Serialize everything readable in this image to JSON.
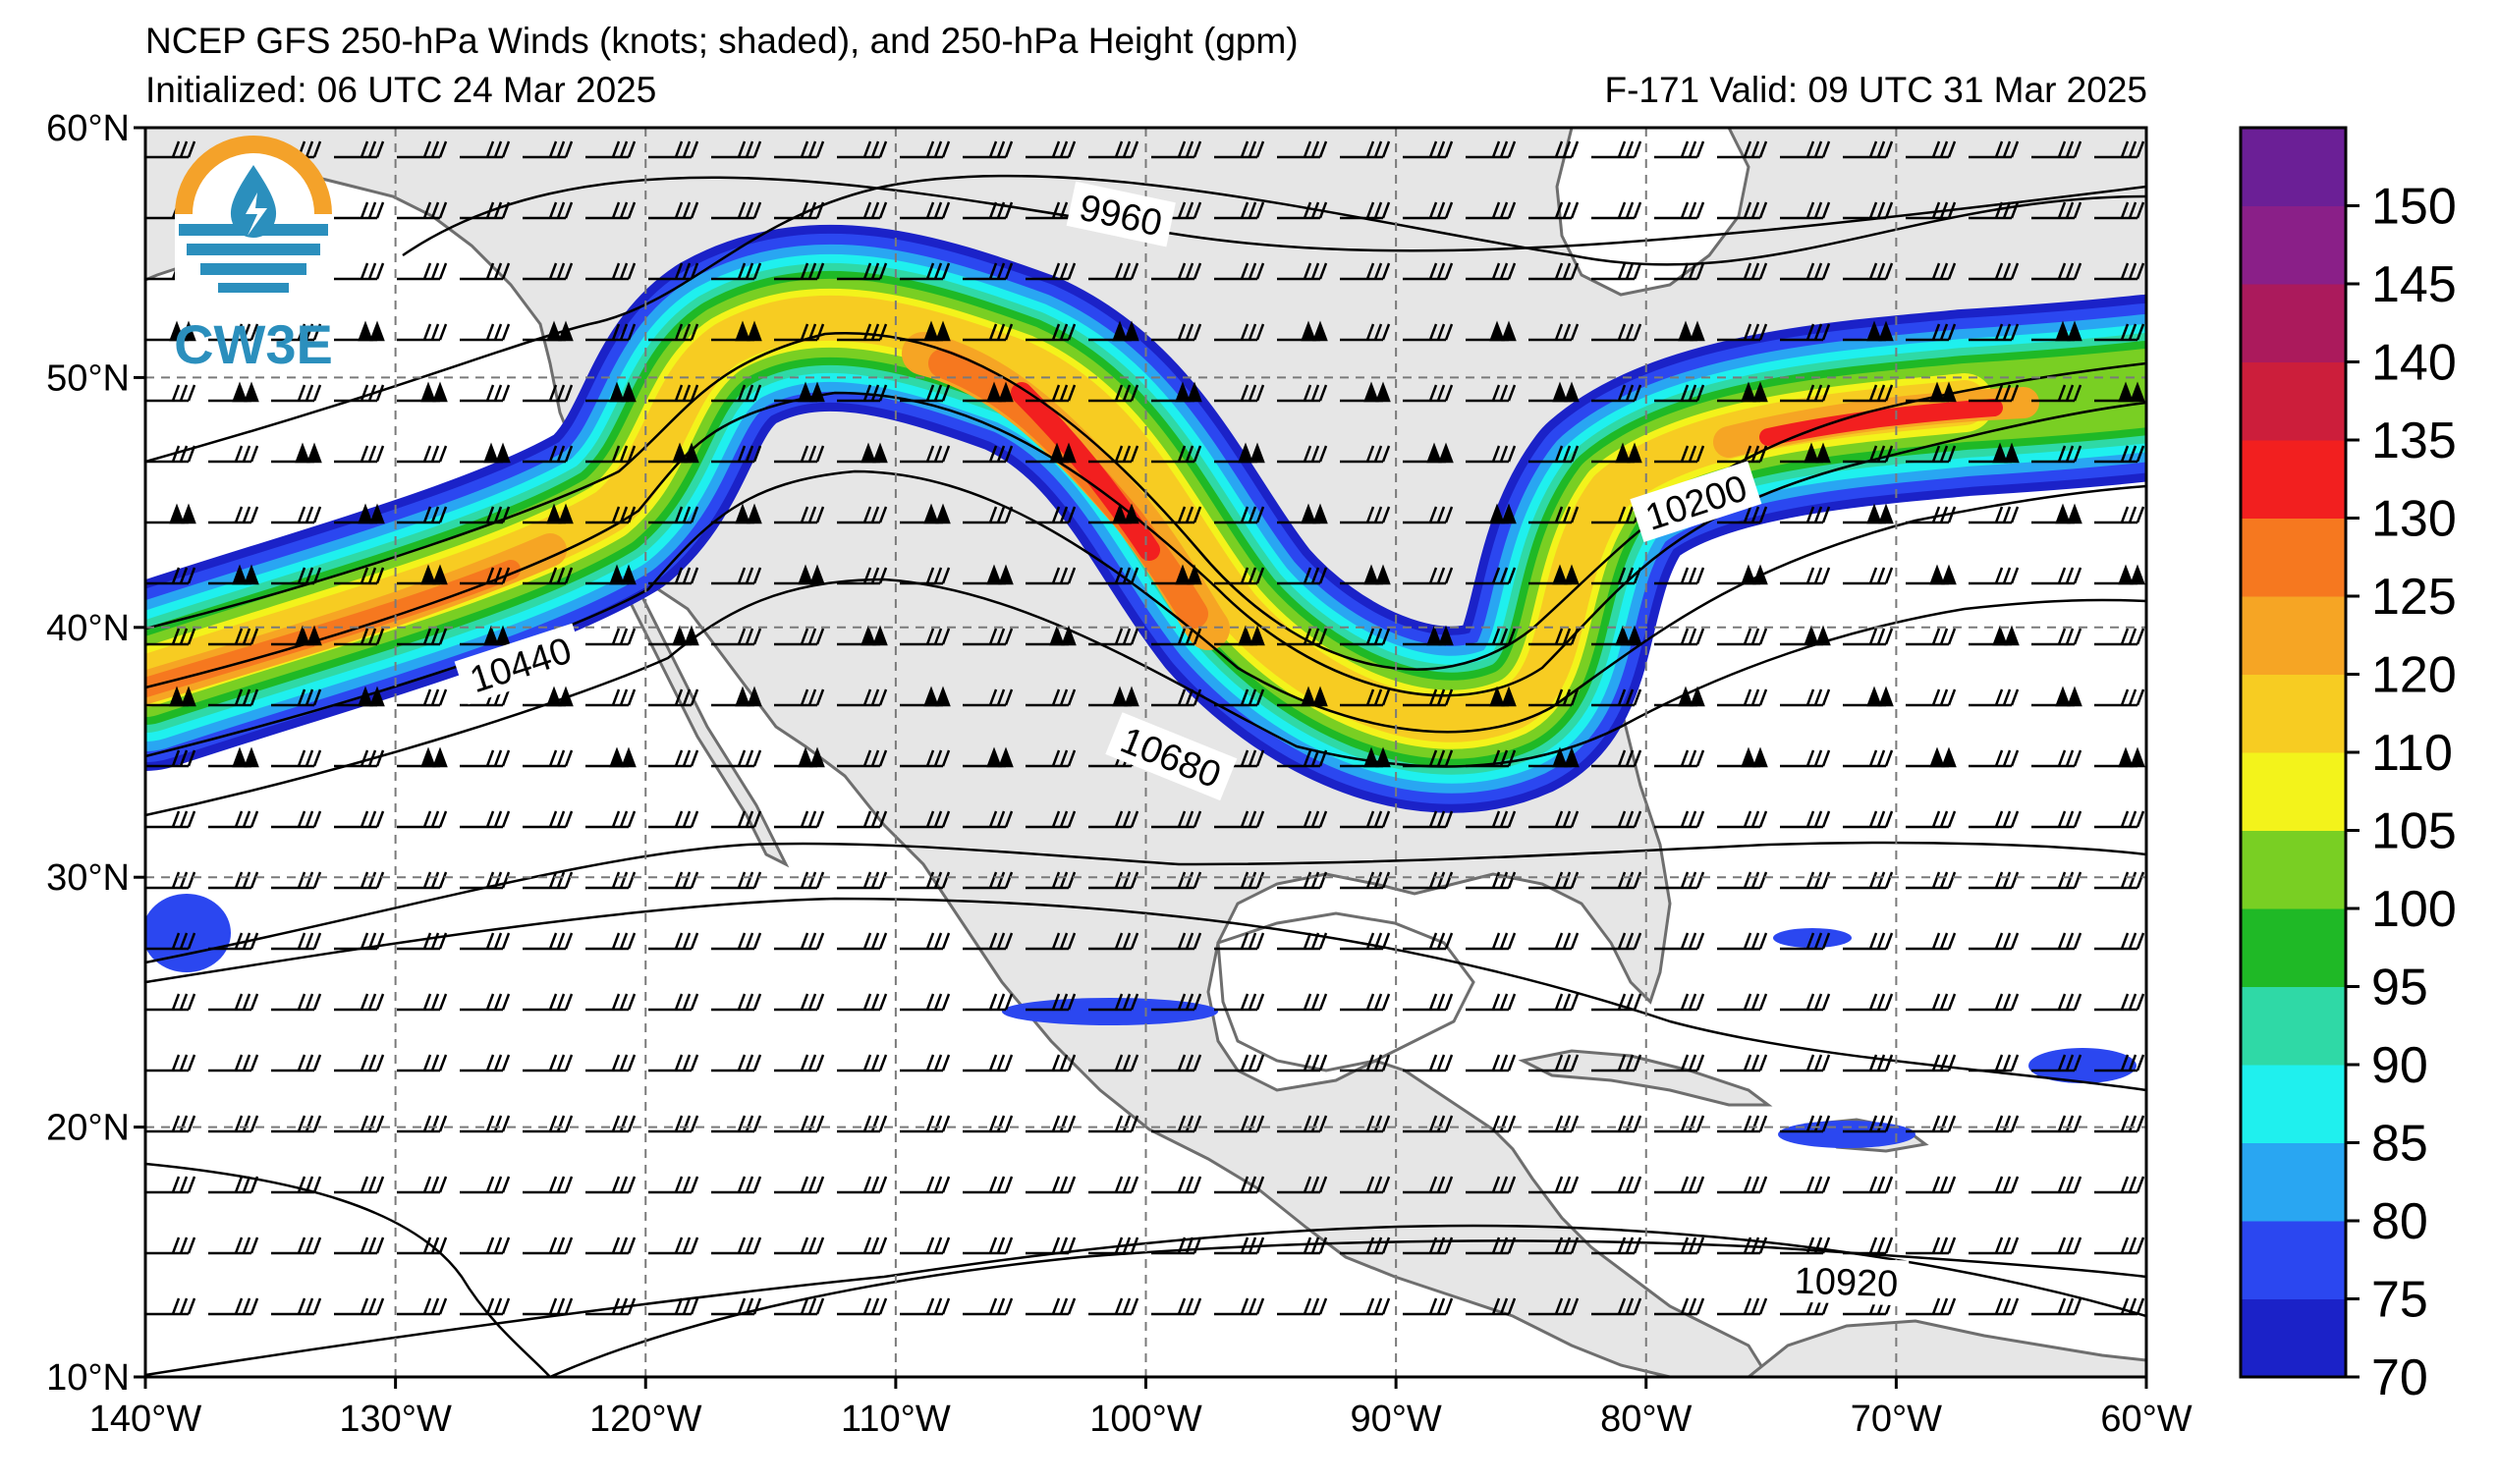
{
  "header": {
    "title": "NCEP GFS 250-hPa Winds (knots; shaded), and 250-hPa Height (gpm)",
    "initialized": "Initialized: 06 UTC 24 Mar 2025",
    "valid": "F-171  Valid: 09 UTC 31 Mar 2025"
  },
  "logo": {
    "text": "CW3E"
  },
  "axes": {
    "lon_ticks": [
      "140°W",
      "130°W",
      "120°W",
      "110°W",
      "100°W",
      "90°W",
      "80°W",
      "70°W",
      "60°W"
    ],
    "lat_ticks": [
      "60°N",
      "50°N",
      "40°N",
      "30°N",
      "20°N",
      "10°N"
    ],
    "lon_range": [
      -140,
      -60
    ],
    "lat_range": [
      10,
      60
    ]
  },
  "colorbar": {
    "ticks": [
      "70",
      "75",
      "80",
      "85",
      "90",
      "95",
      "100",
      "105",
      "110",
      "120",
      "125",
      "130",
      "135",
      "140",
      "145",
      "150"
    ],
    "colors": [
      "#1b22c8",
      "#2b47f0",
      "#29a6f2",
      "#1ff0ee",
      "#2fd9a6",
      "#1fb926",
      "#79cf23",
      "#f3f31b",
      "#f7cc22",
      "#f6a524",
      "#f6781f",
      "#f21f1f",
      "#cc1e3b",
      "#ab1a5c",
      "#8a1f88",
      "#6b1f96"
    ]
  },
  "contours": {
    "labels": [
      {
        "text": "9960",
        "lon": -101,
        "lat": 56.5,
        "angle": 12
      },
      {
        "text": "10200",
        "lon": -78,
        "lat": 45,
        "angle": -18
      },
      {
        "text": "10440",
        "lon": -125,
        "lat": 38.5,
        "angle": -18
      },
      {
        "text": "10680",
        "lon": -99,
        "lat": 34.8,
        "angle": 22
      },
      {
        "text": "10920",
        "lon": -72,
        "lat": 13.8,
        "angle": 2
      }
    ]
  },
  "map_colors": {
    "land": "#e6e6e6",
    "ocean": "#ffffff",
    "coast": "#6e6e6e"
  }
}
